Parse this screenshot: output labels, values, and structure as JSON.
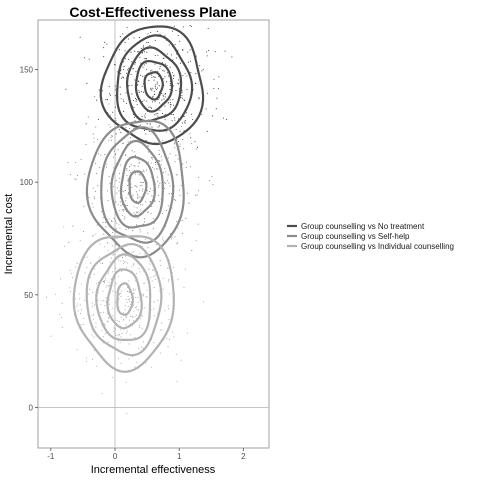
{
  "chart_data": {
    "type": "scatter",
    "title": "Cost-Effectiveness Plane",
    "xlabel": "Incremental effectiveness",
    "ylabel": "Incremental cost",
    "xlim": [
      -1.2,
      2.4
    ],
    "ylim": [
      -18,
      172
    ],
    "x_ticks": [
      -1,
      0,
      1,
      2
    ],
    "y_ticks": [
      0,
      50,
      100,
      150
    ],
    "x_tick_labels": [
      "-1",
      "0",
      "1",
      "2"
    ],
    "y_tick_labels": [
      "0",
      "50",
      "100",
      "150"
    ],
    "grid": false,
    "reference_lines": {
      "x": 0,
      "y": 0
    },
    "legend_position": "right",
    "series": [
      {
        "name": "Group counselling vs No treatment",
        "color": "#4d4d4d",
        "point_color": "#3a3a3a",
        "center": [
          0.6,
          143
        ],
        "spread": [
          0.42,
          13
        ],
        "n_points": 420,
        "contours": [
          [
            0.14,
            6
          ],
          [
            0.28,
            11
          ],
          [
            0.42,
            16
          ],
          [
            0.58,
            21
          ],
          [
            0.78,
            26
          ]
        ]
      },
      {
        "name": "Group counselling vs Self-help",
        "color": "#8c8c8c",
        "point_color": "#808080",
        "center": [
          0.35,
          98
        ],
        "spread": [
          0.45,
          14
        ],
        "n_points": 400,
        "contours": [
          [
            0.13,
            7
          ],
          [
            0.26,
            13
          ],
          [
            0.4,
            19
          ],
          [
            0.56,
            25
          ],
          [
            0.75,
            30
          ]
        ]
      },
      {
        "name": "Group counselling vs Individual counselling",
        "color": "#b3b3b3",
        "point_color": "#a6a6a6",
        "center": [
          0.15,
          48
        ],
        "spread": [
          0.45,
          15
        ],
        "n_points": 400,
        "contours": [
          [
            0.12,
            7
          ],
          [
            0.26,
            13
          ],
          [
            0.42,
            19
          ],
          [
            0.58,
            24
          ],
          [
            0.78,
            30
          ]
        ]
      }
    ]
  }
}
